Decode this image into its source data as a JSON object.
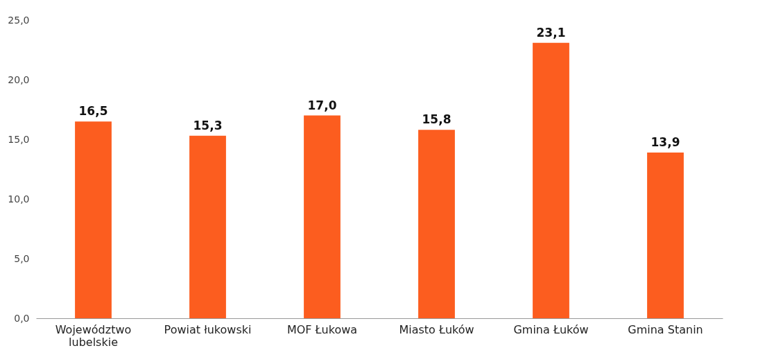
{
  "chart_data": {
    "type": "bar",
    "categories": [
      "Województwo lubelskie",
      "Powiat łukowski",
      "MOF Łukowa",
      "Miasto Łuków",
      "Gmina Łuków",
      "Gmina Stanin"
    ],
    "values": [
      16.5,
      15.3,
      17.0,
      15.8,
      23.1,
      13.9
    ],
    "value_labels": [
      "16,5",
      "15,3",
      "17,0",
      "15,8",
      "23,1",
      "13,9"
    ],
    "color": "#fc5d1f",
    "ylim": [
      0,
      25
    ],
    "yticks": [
      {
        "value": 0,
        "label": "0,0"
      },
      {
        "value": 5,
        "label": "5,0"
      },
      {
        "value": 10,
        "label": "10,0"
      },
      {
        "value": 15,
        "label": "15,0"
      },
      {
        "value": 20,
        "label": "20,0"
      },
      {
        "value": 25,
        "label": "25,0"
      }
    ],
    "grid": false
  }
}
